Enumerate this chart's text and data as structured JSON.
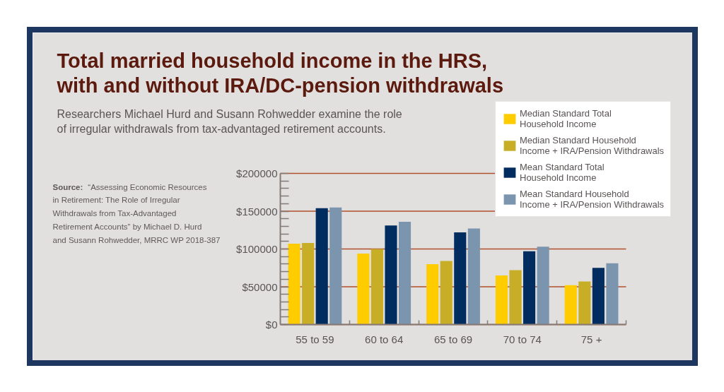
{
  "chart_data": {
    "type": "bar",
    "title": "Total married household income in the HRS, with and without IRA/DC-pension withdrawals",
    "subtitle": "Researchers Michael Hurd and Susann Rohwedder examine the role of irregular withdrawals from tax-advantaged retirement accounts.",
    "annotations": [
      "Source: “Assessing Economic Resources in Retirement:  The Role of Irregular Withdrawals from Tax-Advantaged Retirement Accounts” by Michael D. Hurd and Susann Rohwedder, MRRC WP 2018-387"
    ],
    "categories": [
      "55 to 59",
      "60 to 64",
      "65 to 69",
      "70 to 74",
      "75 +"
    ],
    "series": [
      {
        "name": "Median Standard Total Household Income",
        "color": "#ffcc00",
        "values": [
          107000,
          94000,
          80000,
          65000,
          52000
        ]
      },
      {
        "name": "Median Standard Household Income + IRA/Pension Withdrawals",
        "color": "#c8ae26",
        "values": [
          108000,
          100000,
          84000,
          72000,
          57000
        ]
      },
      {
        "name": "Mean Standard Total Household Income",
        "color": "#002c5f",
        "values": [
          154000,
          131000,
          122000,
          97000,
          75000
        ]
      },
      {
        "name": "Mean Standard Household Income + IRA/Pension Withdrawals",
        "color": "#7c95ae",
        "values": [
          155000,
          136000,
          127000,
          103000,
          81000
        ]
      }
    ],
    "ylim": [
      0,
      200000
    ],
    "yticks": [
      {
        "value": 0,
        "label": "$0"
      },
      {
        "value": 50000,
        "label": "$50000"
      },
      {
        "value": 100000,
        "label": "$100000"
      },
      {
        "value": 150000,
        "label": "$150000"
      },
      {
        "value": 200000,
        "label": "$200000"
      }
    ],
    "grid": "y",
    "legend": "top right"
  }
}
